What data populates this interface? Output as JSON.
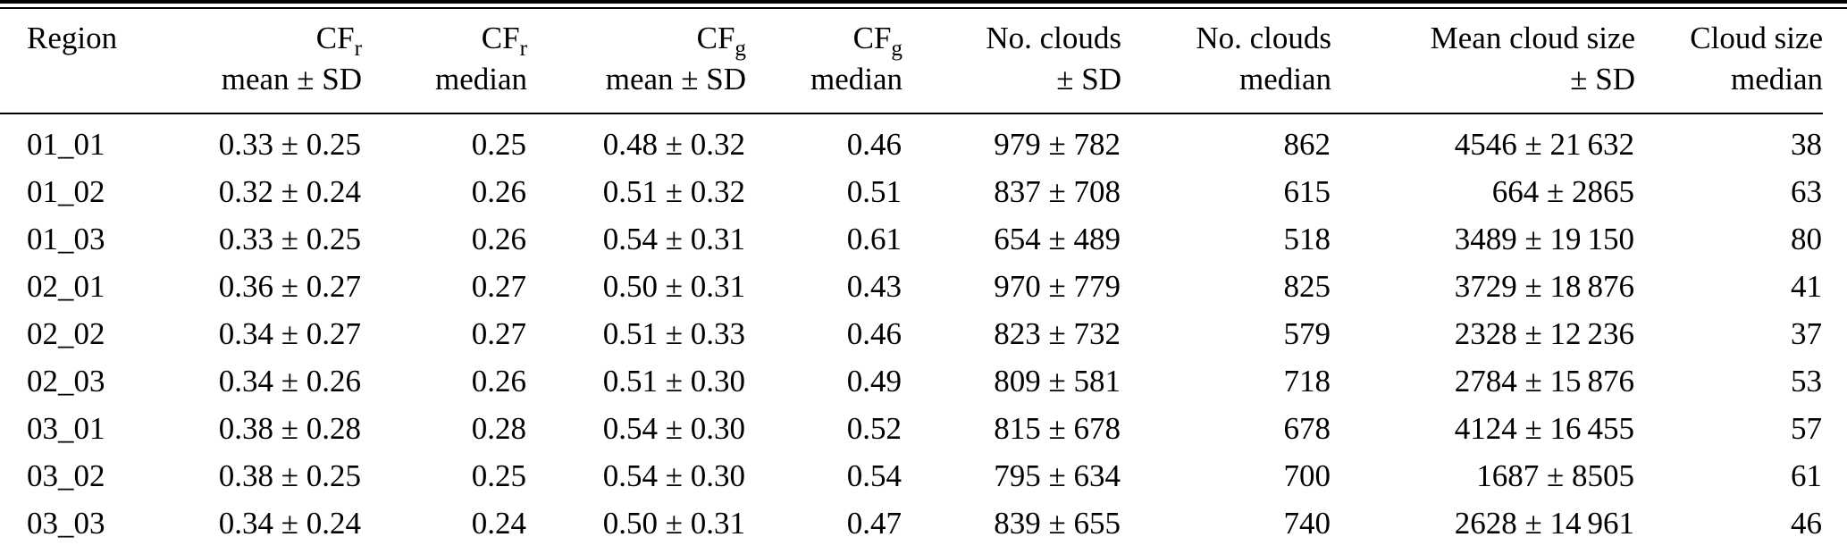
{
  "colors": {
    "text": "#000000",
    "background": "#ffffff",
    "rule": "#000000"
  },
  "table": {
    "columns": [
      {
        "line1": "Region",
        "sub": "",
        "line2": ""
      },
      {
        "line1": "CF",
        "sub": "r",
        "line2": "mean ± SD"
      },
      {
        "line1": "CF",
        "sub": "r",
        "line2": "median"
      },
      {
        "line1": "CF",
        "sub": "g",
        "line2": "mean ± SD"
      },
      {
        "line1": "CF",
        "sub": "g",
        "line2": "median"
      },
      {
        "line1": "No. clouds",
        "sub": "",
        "line2": "± SD"
      },
      {
        "line1": "No. clouds",
        "sub": "",
        "line2": "median"
      },
      {
        "line1": "Mean cloud size",
        "sub": "",
        "line2": "± SD"
      },
      {
        "line1": "Cloud size",
        "sub": "",
        "line2": "median"
      }
    ],
    "rows": [
      [
        "01_01",
        "0.33 ± 0.25",
        "0.25",
        "0.48 ± 0.32",
        "0.46",
        "979 ± 782",
        "862",
        "4546 ± 21 632",
        "38"
      ],
      [
        "01_02",
        "0.32 ± 0.24",
        "0.26",
        "0.51 ± 0.32",
        "0.51",
        "837 ± 708",
        "615",
        "664 ± 2865",
        "63"
      ],
      [
        "01_03",
        "0.33 ± 0.25",
        "0.26",
        "0.54 ± 0.31",
        "0.61",
        "654 ± 489",
        "518",
        "3489 ± 19 150",
        "80"
      ],
      [
        "02_01",
        "0.36 ± 0.27",
        "0.27",
        "0.50 ± 0.31",
        "0.43",
        "970 ± 779",
        "825",
        "3729 ± 18 876",
        "41"
      ],
      [
        "02_02",
        "0.34 ± 0.27",
        "0.27",
        "0.51 ± 0.33",
        "0.46",
        "823 ± 732",
        "579",
        "2328 ± 12 236",
        "37"
      ],
      [
        "02_03",
        "0.34 ± 0.26",
        "0.26",
        "0.51 ± 0.30",
        "0.49",
        "809 ± 581",
        "718",
        "2784 ± 15 876",
        "53"
      ],
      [
        "03_01",
        "0.38 ± 0.28",
        "0.28",
        "0.54 ± 0.30",
        "0.52",
        "815 ± 678",
        "678",
        "4124 ± 16 455",
        "57"
      ],
      [
        "03_02",
        "0.38 ± 0.25",
        "0.25",
        "0.54 ± 0.30",
        "0.54",
        "795 ± 634",
        "700",
        "1687 ± 8505",
        "61"
      ],
      [
        "03_03",
        "0.34 ± 0.24",
        "0.24",
        "0.50 ± 0.31",
        "0.47",
        "839 ± 655",
        "740",
        "2628 ± 14 961",
        "46"
      ]
    ]
  }
}
